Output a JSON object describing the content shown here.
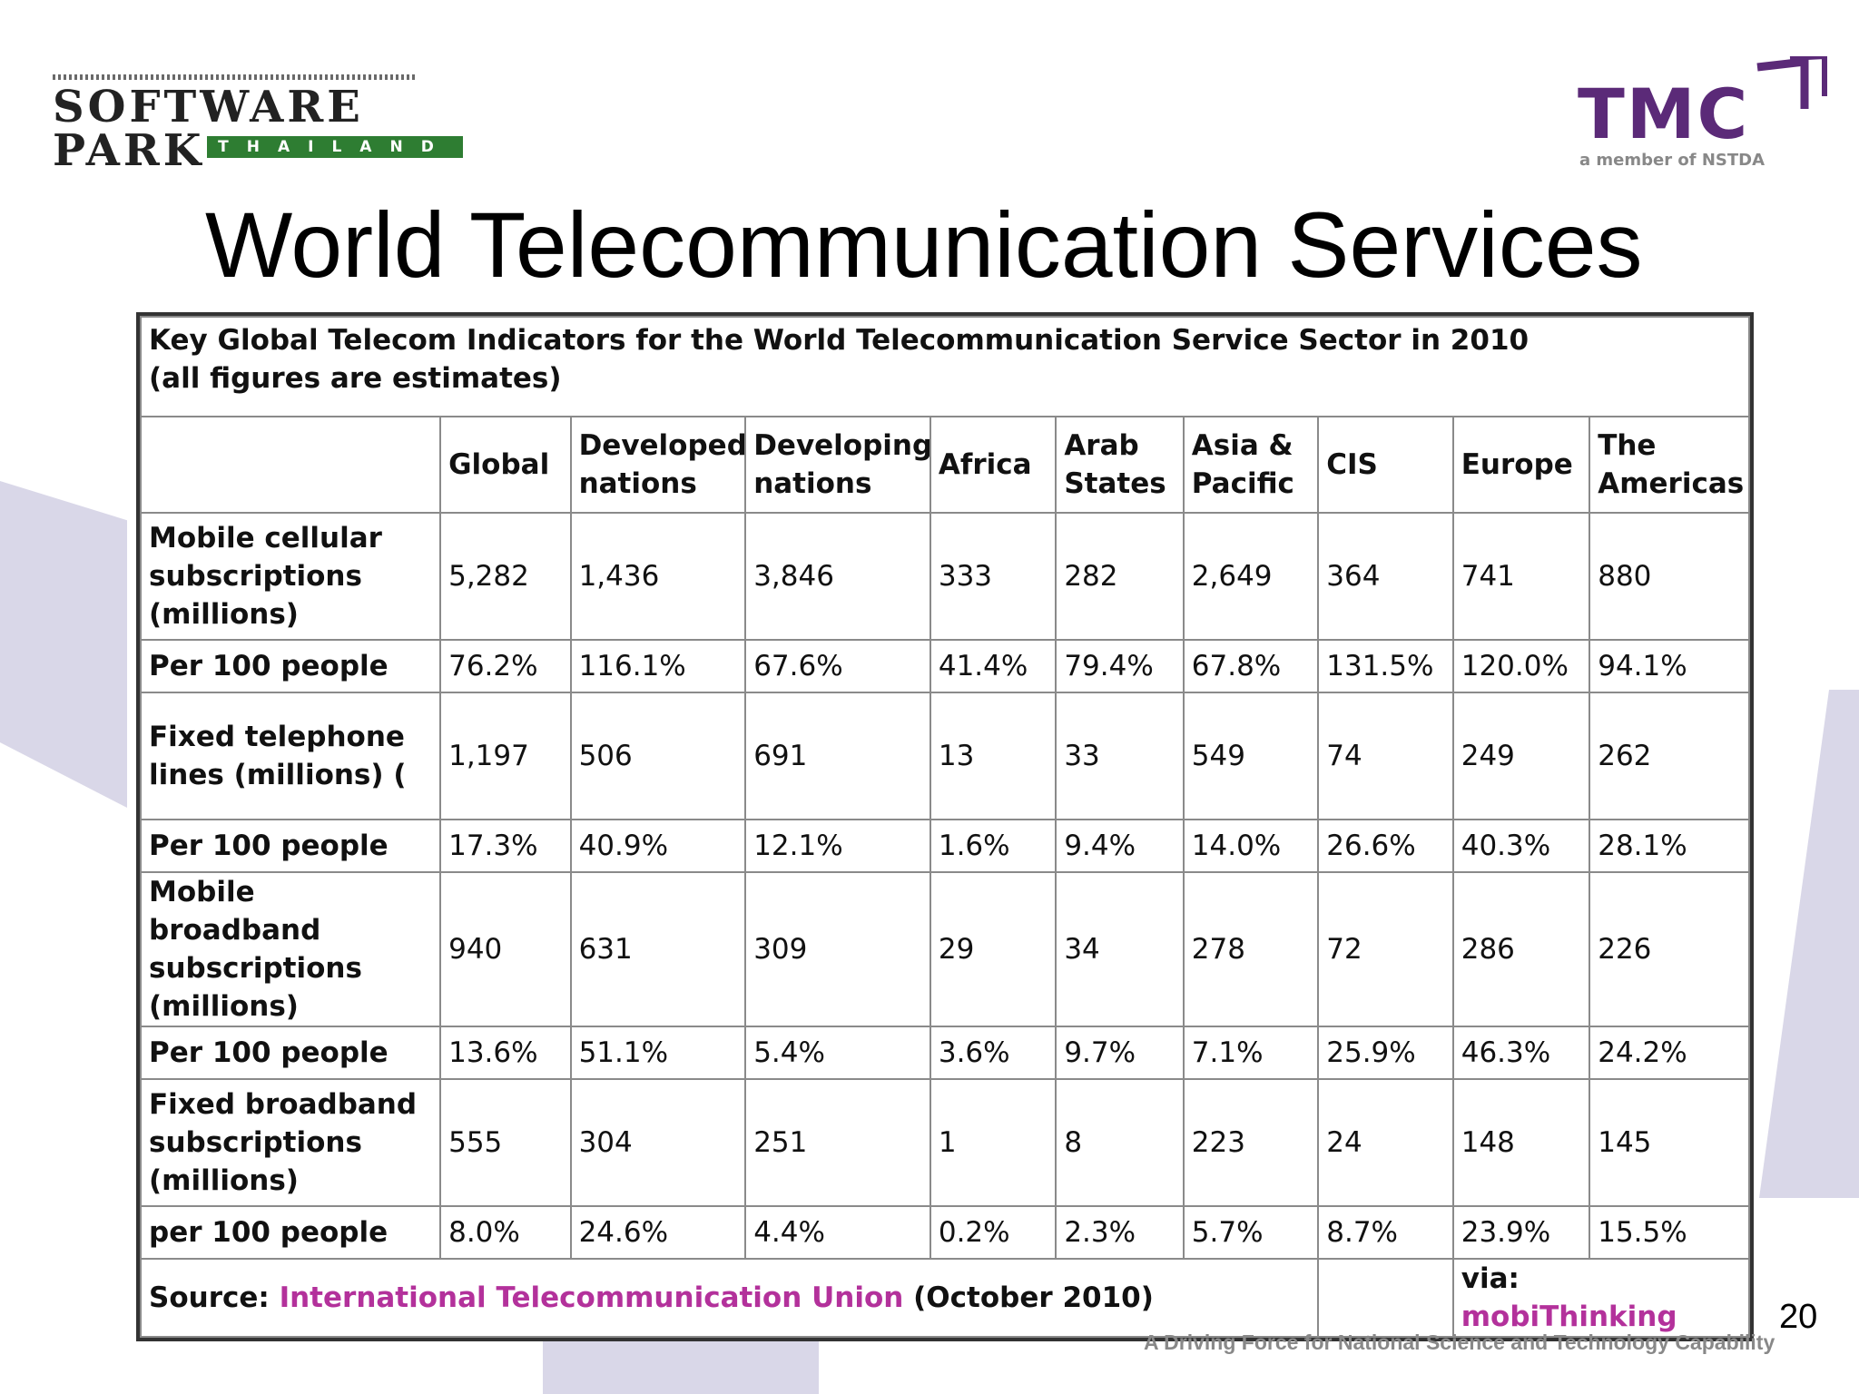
{
  "logo_left": {
    "name": "SOFTWARE PARK",
    "country": "THAILAND"
  },
  "logo_right": {
    "name": "TMC",
    "subtitle": "a member of NSTDA"
  },
  "title": "World Telecommunication Services",
  "table": {
    "caption_line1": "Key Global Telecom Indicators for the World Telecommunication Service Sector in 2010",
    "caption_line2": "(all figures are estimates)",
    "headers": [
      "",
      "Global",
      "Developed nations",
      "Developing nations",
      "Africa",
      "Arab States",
      "Asia & Pacific",
      "CIS",
      "Europe",
      "The Americas"
    ],
    "rows": [
      {
        "label": "Mobile cellular subscriptions (millions)",
        "values": [
          "5,282",
          "1,436",
          "3,846",
          "333",
          "282",
          "2,649",
          "364",
          "741",
          "880"
        ]
      },
      {
        "label": "Per 100 people",
        "values": [
          "76.2%",
          "116.1%",
          "67.6%",
          "41.4%",
          "79.4%",
          "67.8%",
          "131.5%",
          "120.0%",
          "94.1%"
        ]
      },
      {
        "label": "Fixed telephone lines (millions) (",
        "values": [
          "1,197",
          "506",
          "691",
          "13",
          "33",
          "549",
          "74",
          "249",
          "262"
        ]
      },
      {
        "label": "Per 100 people",
        "values": [
          "17.3%",
          "40.9%",
          "12.1%",
          "1.6%",
          "9.4%",
          "14.0%",
          "26.6%",
          "40.3%",
          "28.1%"
        ]
      },
      {
        "label": "Mobile broadband subscriptions (millions)",
        "values": [
          "940",
          "631",
          "309",
          "29",
          "34",
          "278",
          "72",
          "286",
          "226"
        ]
      },
      {
        "label": "Per 100 people",
        "values": [
          "13.6%",
          "51.1%",
          "5.4%",
          "3.6%",
          "9.7%",
          "7.1%",
          "25.9%",
          "46.3%",
          "24.2%"
        ]
      },
      {
        "label": "Fixed broadband subscriptions (millions)",
        "values": [
          "555",
          "304",
          "251",
          "1",
          "8",
          "223",
          "24",
          "148",
          "145"
        ]
      },
      {
        "label": "per 100 people",
        "values": [
          "8.0%",
          "24.6%",
          "4.4%",
          "0.2%",
          "2.3%",
          "5.7%",
          "8.7%",
          "23.9%",
          "15.5%"
        ]
      }
    ],
    "source_prefix": "Source:",
    "source_link": "International Telecommunication Union",
    "source_suffix": "(October 2010)",
    "via_prefix": "via:",
    "via_link": "mobiThinking"
  },
  "page_number": "20",
  "tagline": "A Driving Force for National Science and Technology Capability",
  "colors": {
    "accent_purple": "#5b2a78",
    "link_magenta": "#b3319b",
    "logo_green": "#2e7d32",
    "shape_lavender": "#d9d7e8"
  }
}
